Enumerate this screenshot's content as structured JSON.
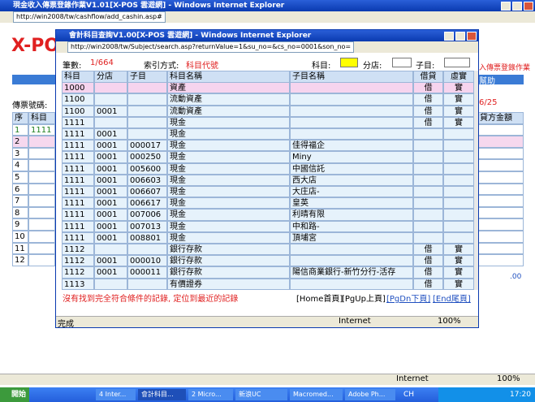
{
  "main_window": {
    "title": "現金收入傳票登錄作業V1.01[X-POS 雲遊網] - Windows Internet Explorer",
    "address": "http://win2008/tw/cashflow/add_cashin.asp#",
    "logo": "X-PO",
    "page_title_fragment": "入傳票登錄作業",
    "help": "幫助",
    "voucher_label": "傳票號碼:",
    "date_fragment": "6/25",
    "columns": [
      "序",
      "科目"
    ],
    "right_column": "貸方金額",
    "rows": [
      [
        "1",
        "1111"
      ],
      [
        "2",
        null
      ],
      [
        "3",
        null
      ],
      [
        "4",
        null
      ],
      [
        "5",
        null
      ],
      [
        "6",
        null
      ],
      [
        "7",
        null
      ],
      [
        "8",
        null
      ],
      [
        "9",
        null
      ],
      [
        "10",
        null
      ],
      [
        "11",
        null
      ],
      [
        "12",
        null
      ]
    ],
    "total_fragment": ".00",
    "status_zone": "Internet",
    "zoom": "100%"
  },
  "popup": {
    "title": "會計科目查詢V1.00[X-POS 雲遊網] - Windows Internet Explorer",
    "address": "http://win2008/tw/Subject/search.asp?returnValue=1&su_no=&cs_no=0001&son_no=",
    "count_label": "筆數:",
    "count_value": "1/664",
    "index_label": "索引方式:",
    "index_value": "科目代號",
    "filter_subject": "科目:",
    "filter_branch": "分店:",
    "filter_sub": "子目:",
    "table": {
      "columns": [
        "科目",
        "分店",
        "子目",
        "科目名稱",
        "子目名稱",
        "借貸",
        "虛實"
      ],
      "rows": [
        [
          "1000",
          null,
          null,
          "資產",
          null,
          "借",
          "實"
        ],
        [
          "1100",
          null,
          null,
          "流動資產",
          null,
          "借",
          "實"
        ],
        [
          "1100",
          "0001",
          null,
          "流動資產",
          null,
          "借",
          "實"
        ],
        [
          "1111",
          null,
          null,
          "現金",
          null,
          "借",
          "實"
        ],
        [
          "1111",
          "0001",
          null,
          "現金",
          null,
          null,
          null
        ],
        [
          "1111",
          "0001",
          "000017",
          "現金",
          "佳得福企",
          null,
          null
        ],
        [
          "1111",
          "0001",
          "000250",
          "現金",
          "Miny",
          null,
          null
        ],
        [
          "1111",
          "0001",
          "005600",
          "現金",
          "中國信託",
          null,
          null
        ],
        [
          "1111",
          "0001",
          "006603",
          "現金",
          "西大店",
          null,
          null
        ],
        [
          "1111",
          "0001",
          "006607",
          "現金",
          "大庄店-",
          null,
          null
        ],
        [
          "1111",
          "0001",
          "006617",
          "現金",
          "皇英",
          null,
          null
        ],
        [
          "1111",
          "0001",
          "007006",
          "現金",
          "利晴有限",
          null,
          null
        ],
        [
          "1111",
          "0001",
          "007013",
          "現金",
          "中和路-",
          null,
          null
        ],
        [
          "1111",
          "0001",
          "008801",
          "現金",
          "頂埔宮",
          null,
          null
        ],
        [
          "1112",
          null,
          null,
          "銀行存款",
          null,
          "借",
          "實"
        ],
        [
          "1112",
          "0001",
          "000010",
          "銀行存款",
          null,
          "借",
          "實"
        ],
        [
          "1112",
          "0001",
          "000011",
          "銀行存款",
          "陽信商業銀行-新竹分行-活存",
          "借",
          "實"
        ],
        [
          "1113",
          null,
          null,
          "有價證券",
          null,
          "借",
          "實"
        ]
      ]
    },
    "message": "沒有找到完全符合條件的記錄, 定位到最近的記錄",
    "nav": [
      "[Home首頁]",
      "[PgUp上頁]",
      "[PgDn下頁]",
      "[End尾頁]"
    ],
    "status": "完成",
    "status_zone": "Internet",
    "zoom": "100%"
  },
  "taskbar": {
    "start": "開始",
    "tasks": [
      "4 Inter...",
      "會計科目...",
      "2 Micro...",
      "新浪UC",
      "Macromed...",
      "Adobe Ph..."
    ],
    "lang": "CH",
    "clock": "17:20"
  }
}
